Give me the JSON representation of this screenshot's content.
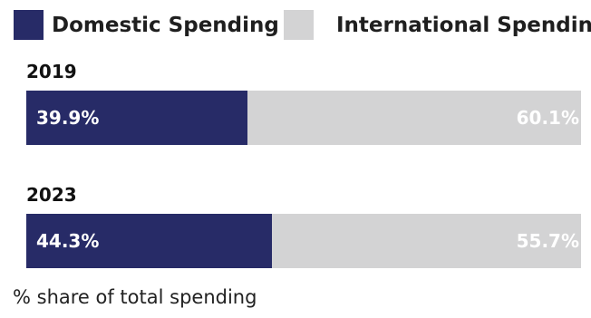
{
  "legend": {
    "domestic_label": "Domestic Spending",
    "international_label": "International Spending"
  },
  "colors": {
    "domestic": "#272b67",
    "international": "#d3d3d4"
  },
  "footnote": "% share of total spending",
  "chart_data": {
    "type": "bar",
    "orientation": "horizontal",
    "stacked": true,
    "normalized_to": 100,
    "categories": [
      "2019",
      "2023"
    ],
    "series": [
      {
        "name": "Domestic Spending",
        "values": [
          39.9,
          44.3
        ],
        "labels": [
          "39.9%",
          "44.3%"
        ]
      },
      {
        "name": "International Spending",
        "values": [
          60.1,
          55.7
        ],
        "labels": [
          "60.1%",
          "55.7%"
        ]
      }
    ],
    "legend_position": "top-left",
    "grid": false
  }
}
